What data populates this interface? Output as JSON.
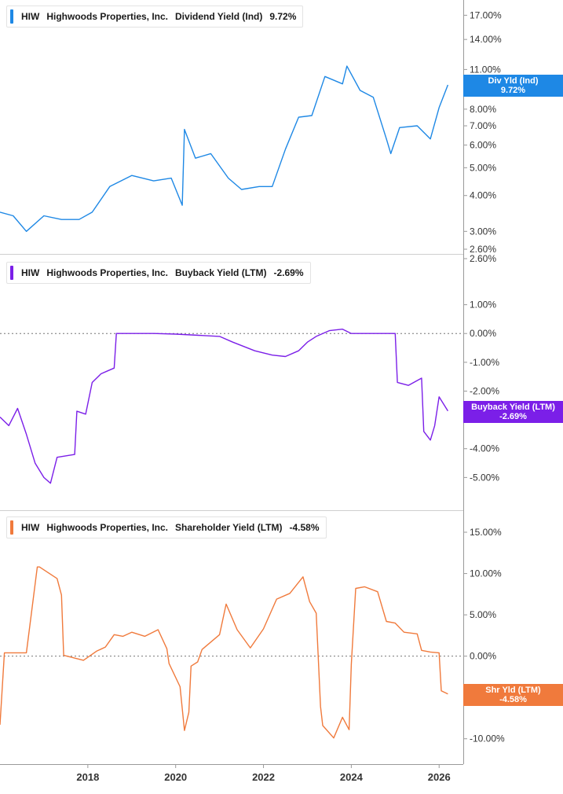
{
  "chart_data": [
    {
      "type": "line",
      "ticker": "HIW",
      "company": "Highwoods Properties, Inc.",
      "metric": "Dividend Yield (Ind)",
      "current_value": "9.72%",
      "end_label": {
        "line1": "Div Yld (Ind)",
        "line2": "9.72%"
      },
      "color": "#1e88e5",
      "y_scale": "log",
      "ylim": [
        2.6,
        18.5
      ],
      "y_ticks": [
        "17.00%",
        "14.00%",
        "11.00%",
        "8.00%",
        "7.00%",
        "6.00%",
        "5.00%",
        "4.00%",
        "3.00%",
        "2.60%"
      ],
      "series": [
        {
          "x": [
            2016.0,
            2016.3,
            2016.6,
            2017.0,
            2017.4,
            2017.8,
            2018.1,
            2018.5,
            2019.0,
            2019.5,
            2019.9,
            2020.15,
            2020.2,
            2020.45,
            2020.8,
            2021.2,
            2021.5,
            2021.9,
            2022.2,
            2022.5,
            2022.8,
            2023.1,
            2023.4,
            2023.8,
            2023.9,
            2024.2,
            2024.5,
            2024.8,
            2024.9,
            2025.1,
            2025.5,
            2025.8,
            2026.0,
            2026.2
          ],
          "y": [
            3.5,
            3.4,
            3.0,
            3.4,
            3.3,
            3.3,
            3.5,
            4.3,
            4.7,
            4.5,
            4.6,
            3.7,
            6.8,
            5.4,
            5.6,
            4.6,
            4.2,
            4.3,
            4.3,
            5.8,
            7.5,
            7.6,
            10.4,
            9.8,
            11.3,
            9.3,
            8.8,
            6.3,
            5.6,
            6.9,
            7.0,
            6.3,
            8.1,
            9.72
          ]
        }
      ]
    },
    {
      "type": "line",
      "ticker": "HIW",
      "company": "Highwoods Properties, Inc.",
      "metric": "Buyback Yield (LTM)",
      "current_value": "-2.69%",
      "end_label": {
        "line1": "Buyback Yield (LTM)",
        "line2": "-2.69%"
      },
      "color": "#7b1fe8",
      "y_scale": "linear",
      "ylim": [
        -6.0,
        2.6
      ],
      "y_ticks": [
        "2.60%",
        "1.00%",
        "0.00%",
        "-1.00%",
        "-2.00%",
        "-3.00%",
        "-4.00%",
        "-5.00%"
      ],
      "zero_line": 0,
      "series": [
        {
          "x": [
            2016.0,
            2016.2,
            2016.4,
            2016.6,
            2016.8,
            2017.0,
            2017.15,
            2017.3,
            2017.7,
            2017.75,
            2017.95,
            2018.1,
            2018.3,
            2018.45,
            2018.6,
            2018.65,
            2019.5,
            2020.0,
            2021.0,
            2021.3,
            2021.8,
            2022.2,
            2022.5,
            2022.8,
            2023.0,
            2023.2,
            2023.5,
            2023.8,
            2024.0,
            2025.0,
            2025.05,
            2025.3,
            2025.6,
            2025.65,
            2025.8,
            2025.9,
            2026.0,
            2026.2
          ],
          "y": [
            -2.9,
            -3.2,
            -2.6,
            -3.5,
            -4.5,
            -5.0,
            -5.2,
            -4.3,
            -4.2,
            -2.7,
            -2.8,
            -1.7,
            -1.4,
            -1.3,
            -1.2,
            0.0,
            0.0,
            -0.02,
            -0.1,
            -0.3,
            -0.6,
            -0.75,
            -0.8,
            -0.6,
            -0.3,
            -0.1,
            0.1,
            0.15,
            0.0,
            0.0,
            -1.7,
            -1.8,
            -1.55,
            -3.4,
            -3.7,
            -3.2,
            -2.2,
            -2.69
          ]
        }
      ]
    },
    {
      "type": "line",
      "ticker": "HIW",
      "company": "Highwoods Properties, Inc.",
      "metric": "Shareholder Yield (LTM)",
      "current_value": "-4.58%",
      "end_label": {
        "line1": "Shr Yld (LTM)",
        "line2": "-4.58%"
      },
      "color": "#f07a3c",
      "y_scale": "linear",
      "ylim": [
        -12.5,
        17.0
      ],
      "y_ticks": [
        "15.00%",
        "10.00%",
        "5.00%",
        "0.00%",
        "-5.0",
        "-10.00%"
      ],
      "zero_line": 0,
      "series": [
        {
          "x": [
            2016.0,
            2016.1,
            2016.2,
            2016.6,
            2016.85,
            2016.9,
            2017.3,
            2017.4,
            2017.45,
            2017.9,
            2018.2,
            2018.4,
            2018.6,
            2018.8,
            2019.0,
            2019.3,
            2019.6,
            2019.8,
            2019.85,
            2020.1,
            2020.2,
            2020.3,
            2020.35,
            2020.5,
            2020.6,
            2021.0,
            2021.15,
            2021.4,
            2021.7,
            2022.0,
            2022.3,
            2022.6,
            2022.9,
            2023.05,
            2023.2,
            2023.3,
            2023.35,
            2023.6,
            2023.8,
            2023.95,
            2024.0,
            2024.1,
            2024.3,
            2024.6,
            2024.8,
            2025.0,
            2025.2,
            2025.5,
            2025.6,
            2025.8,
            2026.0,
            2026.05,
            2026.2
          ],
          "y": [
            -8.3,
            0.4,
            0.4,
            0.4,
            10.8,
            10.8,
            9.4,
            7.4,
            0.1,
            -0.5,
            0.6,
            1.1,
            2.6,
            2.4,
            2.9,
            2.4,
            3.2,
            0.9,
            -0.9,
            -3.7,
            -9.0,
            -6.8,
            -1.2,
            -0.7,
            0.8,
            2.6,
            6.3,
            3.2,
            1.0,
            3.3,
            6.9,
            7.6,
            9.6,
            6.6,
            5.2,
            -6.1,
            -8.4,
            -9.9,
            -7.4,
            -8.9,
            -1.0,
            8.2,
            8.4,
            7.8,
            4.2,
            4.0,
            2.9,
            2.7,
            0.7,
            0.5,
            0.4,
            -4.2,
            -4.58
          ]
        }
      ]
    }
  ],
  "x_axis": {
    "ticks": [
      "2018",
      "2020",
      "2022",
      "2024",
      "2026"
    ]
  },
  "colors": {
    "gridline": "#cccccc",
    "axis": "#999999",
    "zero_line": "#777777"
  }
}
